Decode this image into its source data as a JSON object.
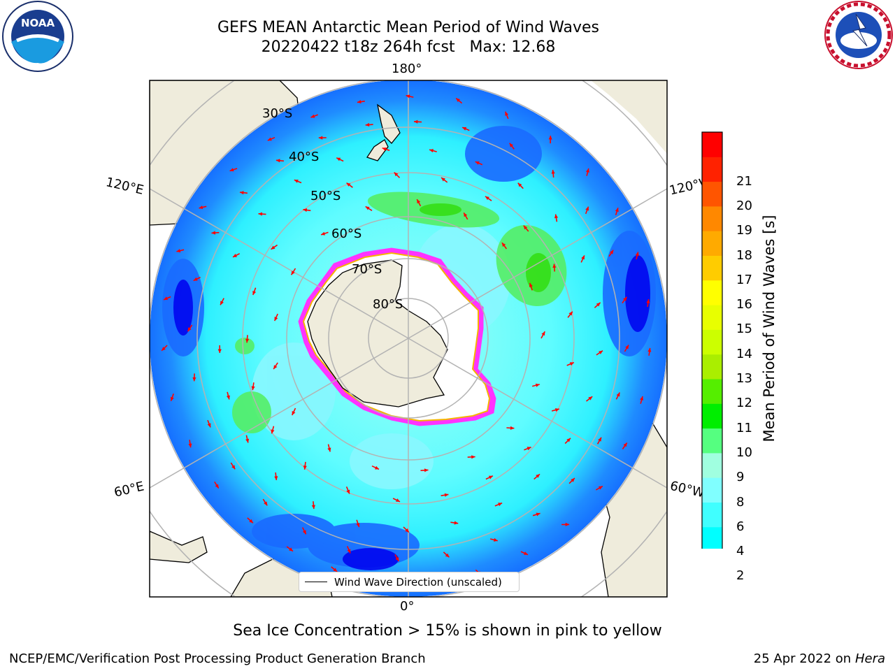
{
  "header": {
    "title_line1": "GEFS MEAN Antarctic Mean Period of Wind Waves",
    "title_line2": "20220422 t18z 264h fcst   Max: 12.68"
  },
  "logos": {
    "noaa": {
      "text": "NOAA",
      "ring_text": "NATIONAL OCEANIC AND ATMOSPHERIC ADMINISTRATION · U.S. DEPARTMENT OF COMMERCE"
    },
    "nws": {
      "ring_text": "NATIONAL WEATHER SERVICE"
    }
  },
  "map": {
    "projection": "south-polar-stereographic",
    "lon_labels": {
      "top": "180°",
      "bottom": "0°",
      "left_upper": "120°E",
      "left_lower": "60°E",
      "right_upper": "120°W",
      "right_lower": "60°W"
    },
    "lat_labels": [
      "30°S",
      "40°S",
      "50°S",
      "60°S",
      "70°S",
      "80°S"
    ],
    "colors": {
      "land": "#efecdc",
      "ice_sheet": "#ffffff",
      "arrow": "#ff0000",
      "grid": "#b3b3b3"
    }
  },
  "colorbar": {
    "label": "Mean Period of Wind Waves [s]",
    "ticks": [
      "2",
      "4",
      "6",
      "8",
      "9",
      "10",
      "11",
      "12",
      "13",
      "14",
      "15",
      "16",
      "17",
      "18",
      "19",
      "20",
      "21"
    ],
    "under_color": "#0000ff",
    "colors": [
      "#0080ff",
      "#00ffff",
      "#40ffff",
      "#80ffff",
      "#a0ffe0",
      "#55ff80",
      "#00ee00",
      "#55ee00",
      "#aaee00",
      "#ccff00",
      "#e8ff00",
      "#ffff00",
      "#ffcc00",
      "#ffaa00",
      "#ff8800",
      "#ff5500",
      "#ff2200",
      "#ff0000"
    ]
  },
  "legend": {
    "label": "Wind Wave Direction (unscaled)"
  },
  "notes": {
    "sea_ice": "Sea Ice Concentration > 15% is shown in pink to yellow"
  },
  "footer": {
    "left": "NCEP/EMC/Verification Post Processing Product Generation Branch",
    "right_date": "25 Apr 2022 on",
    "right_host": "Hera"
  }
}
